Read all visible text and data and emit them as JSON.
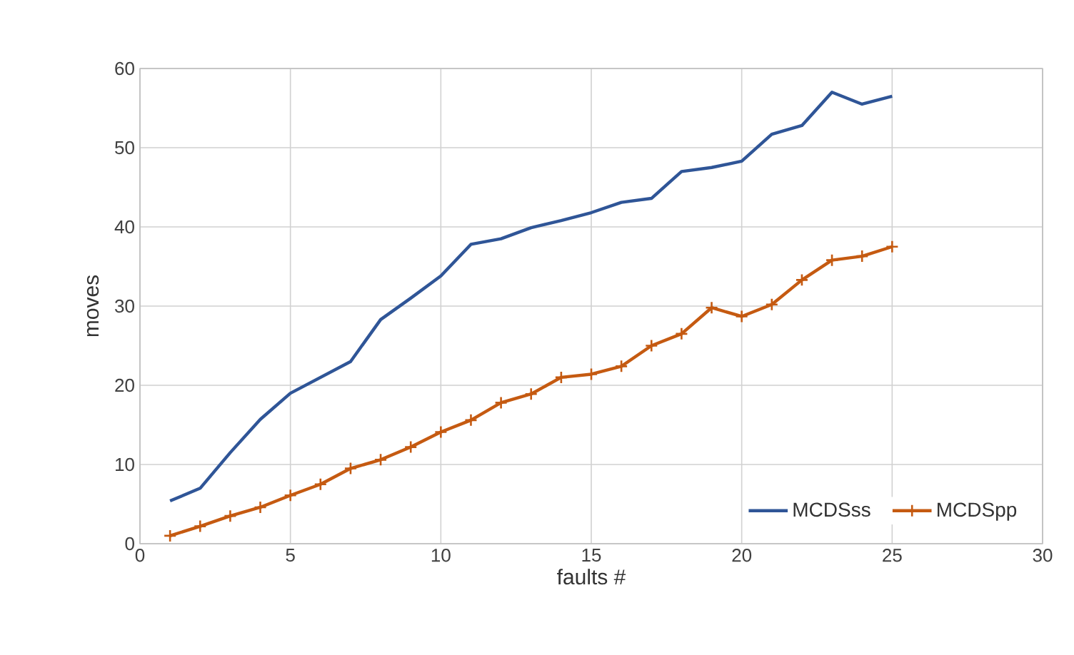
{
  "chart_data": {
    "type": "line",
    "xlabel": "faults #",
    "ylabel": "moves",
    "x": [
      1,
      2,
      3,
      4,
      5,
      6,
      7,
      8,
      9,
      10,
      11,
      12,
      13,
      14,
      15,
      16,
      17,
      18,
      19,
      20,
      21,
      22,
      23,
      24,
      25
    ],
    "series": [
      {
        "name": "MCDSss",
        "color": "#2f5597",
        "marker": "none",
        "values": [
          5.4,
          7,
          11.5,
          15.7,
          19,
          21,
          23,
          28.3,
          31,
          33.8,
          37.8,
          38.5,
          39.9,
          40.8,
          41.8,
          43.1,
          43.6,
          47,
          47.5,
          48.3,
          51.7,
          52.8,
          57,
          55.5,
          56.5
        ]
      },
      {
        "name": "MCDSpp",
        "color": "#c55a11",
        "marker": "cross",
        "values": [
          1,
          2.2,
          3.5,
          4.6,
          6.1,
          7.5,
          9.5,
          10.6,
          12.2,
          14.1,
          15.6,
          17.8,
          18.9,
          21,
          21.4,
          22.4,
          25,
          26.5,
          29.8,
          28.7,
          30.2,
          33.3,
          35.8,
          36.3,
          37.5
        ]
      }
    ],
    "xlim": [
      0,
      30
    ],
    "xticks": [
      0,
      5,
      10,
      15,
      20,
      25,
      30
    ],
    "ylim": [
      0,
      60
    ],
    "yticks": [
      0,
      10,
      20,
      30,
      40,
      50,
      60
    ],
    "grid": true,
    "legend": "bottom right"
  }
}
